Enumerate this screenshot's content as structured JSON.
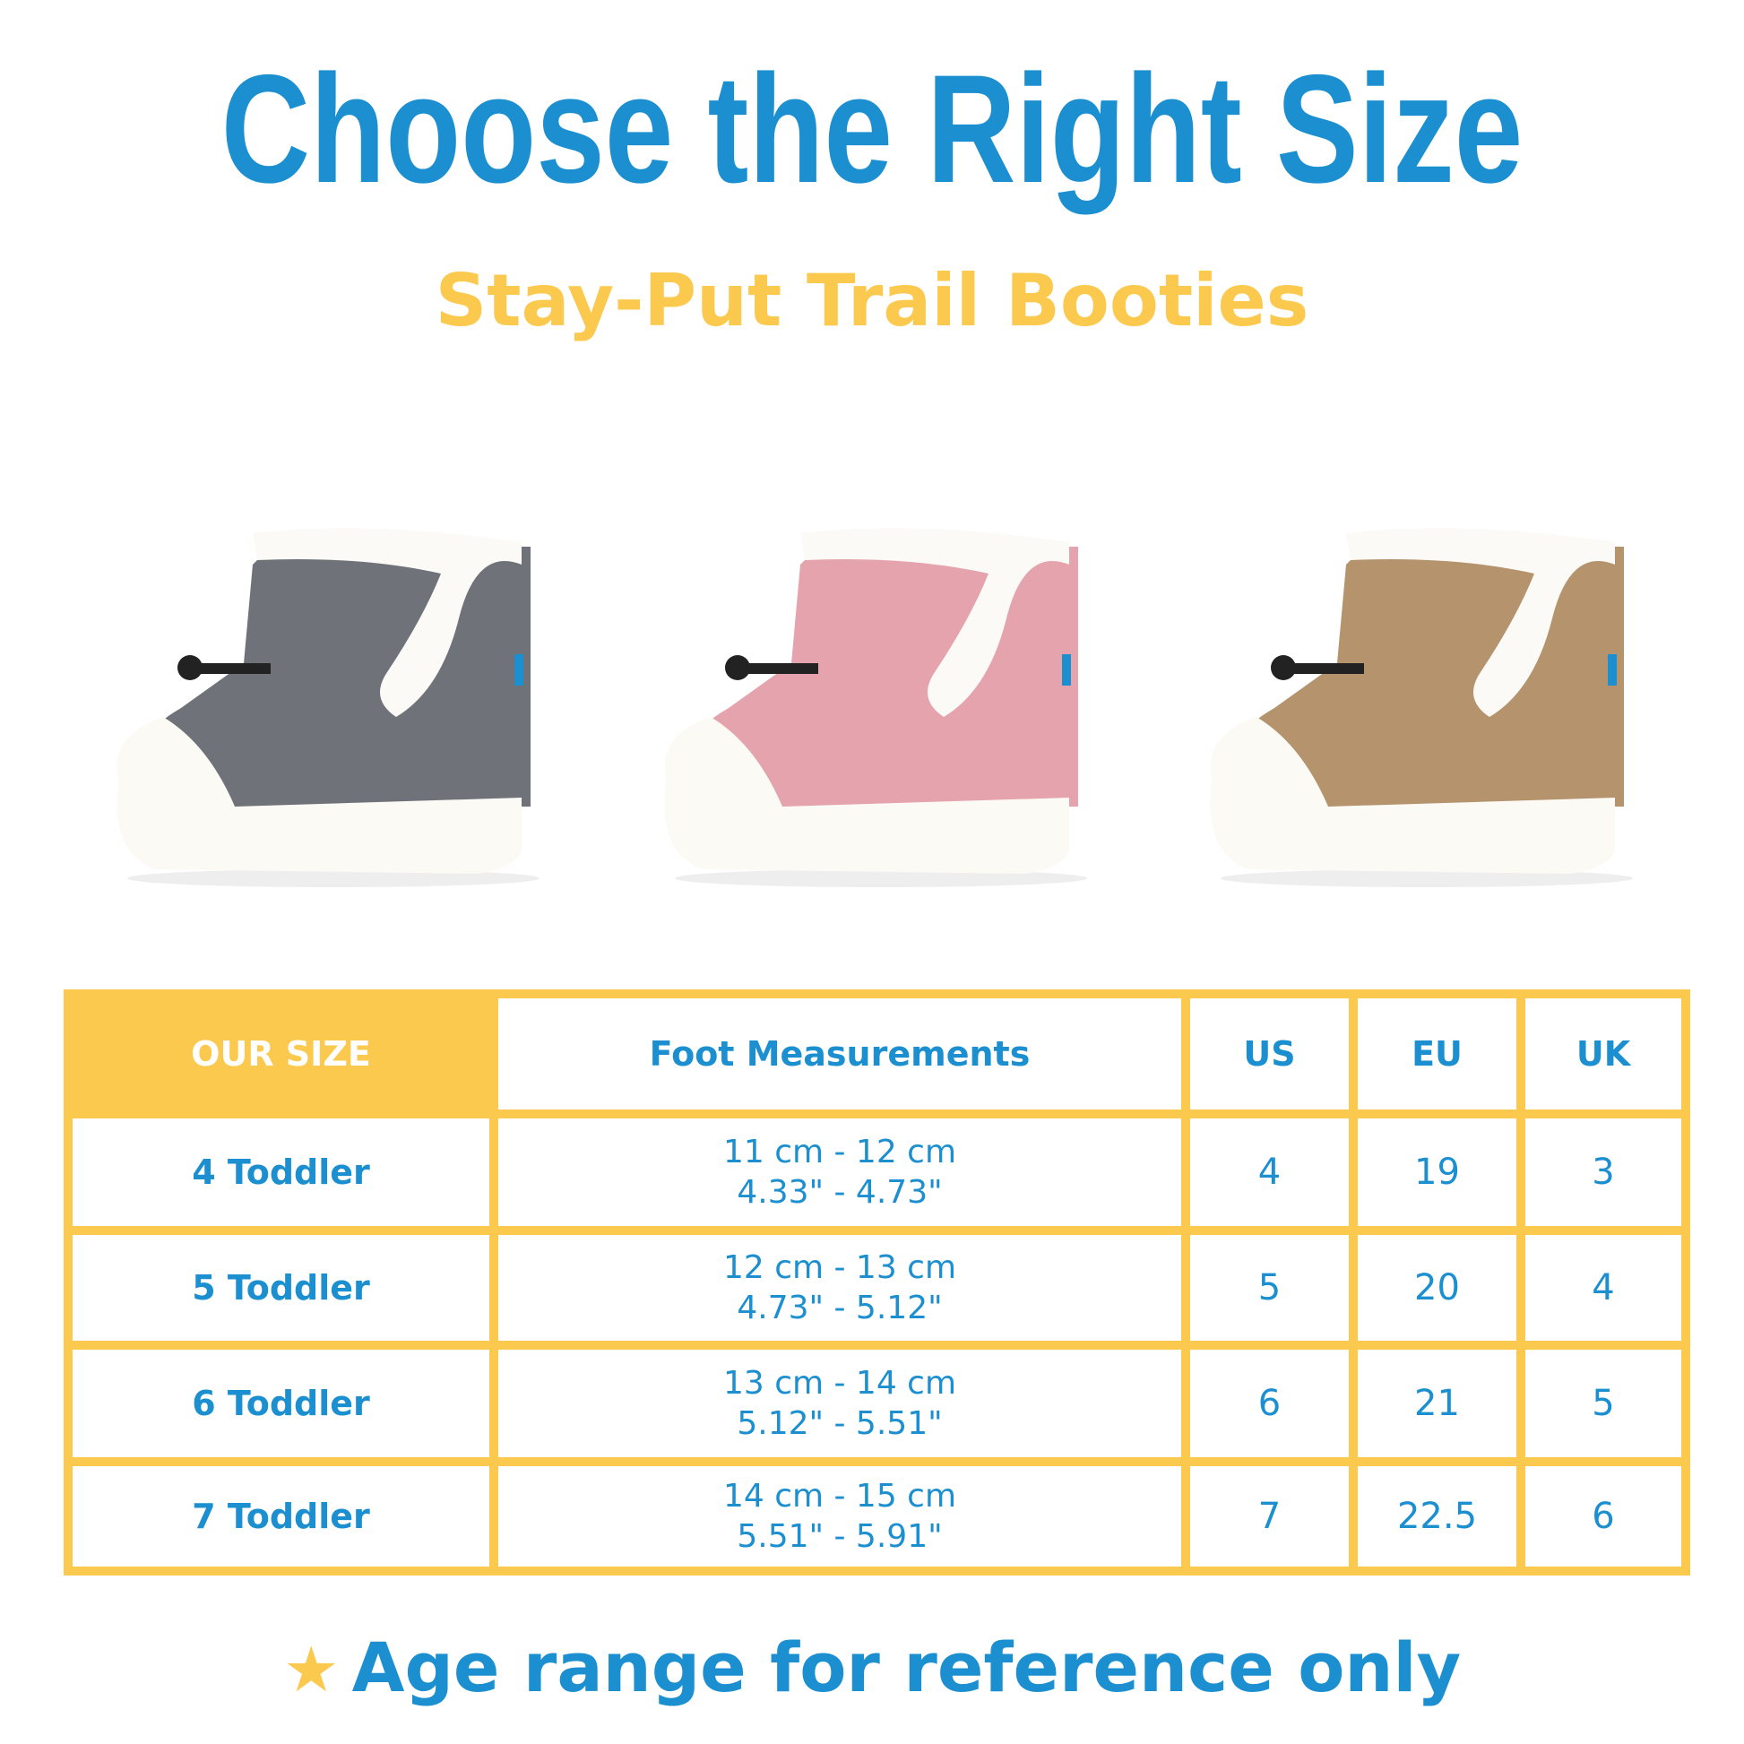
{
  "header": {
    "title": "Choose the Right Size",
    "subtitle": "Stay-Put Trail Booties"
  },
  "products": [
    {
      "color": "gray",
      "hex": "#6f7278"
    },
    {
      "color": "pink",
      "hex": "#e5a3ad"
    },
    {
      "color": "tan",
      "hex": "#b4936d"
    }
  ],
  "table": {
    "headers": [
      "OUR SIZE",
      "Foot Measurements",
      "US",
      "EU",
      "UK"
    ],
    "rows": [
      {
        "size": "4 Toddler",
        "cm": "11 cm - 12 cm",
        "in": "4.33\" - 4.73\"",
        "us": "4",
        "eu": "19",
        "uk": "3"
      },
      {
        "size": "5 Toddler",
        "cm": "12 cm - 13 cm",
        "in": "4.73\" - 5.12\"",
        "us": "5",
        "eu": "20",
        "uk": "4"
      },
      {
        "size": "6 Toddler",
        "cm": "13 cm - 14 cm",
        "in": "5.12\" - 5.51\"",
        "us": "6",
        "eu": "21",
        "uk": "5"
      },
      {
        "size": "7 Toddler",
        "cm": "14 cm - 15 cm",
        "in": "5.51\" - 5.91\"",
        "us": "7",
        "eu": "22.5",
        "uk": "6"
      }
    ]
  },
  "footer": {
    "icon": "star-icon",
    "text": "Age range for reference only"
  },
  "colors": {
    "blue": "#1b8fd0",
    "yellow": "#fcc94f"
  }
}
